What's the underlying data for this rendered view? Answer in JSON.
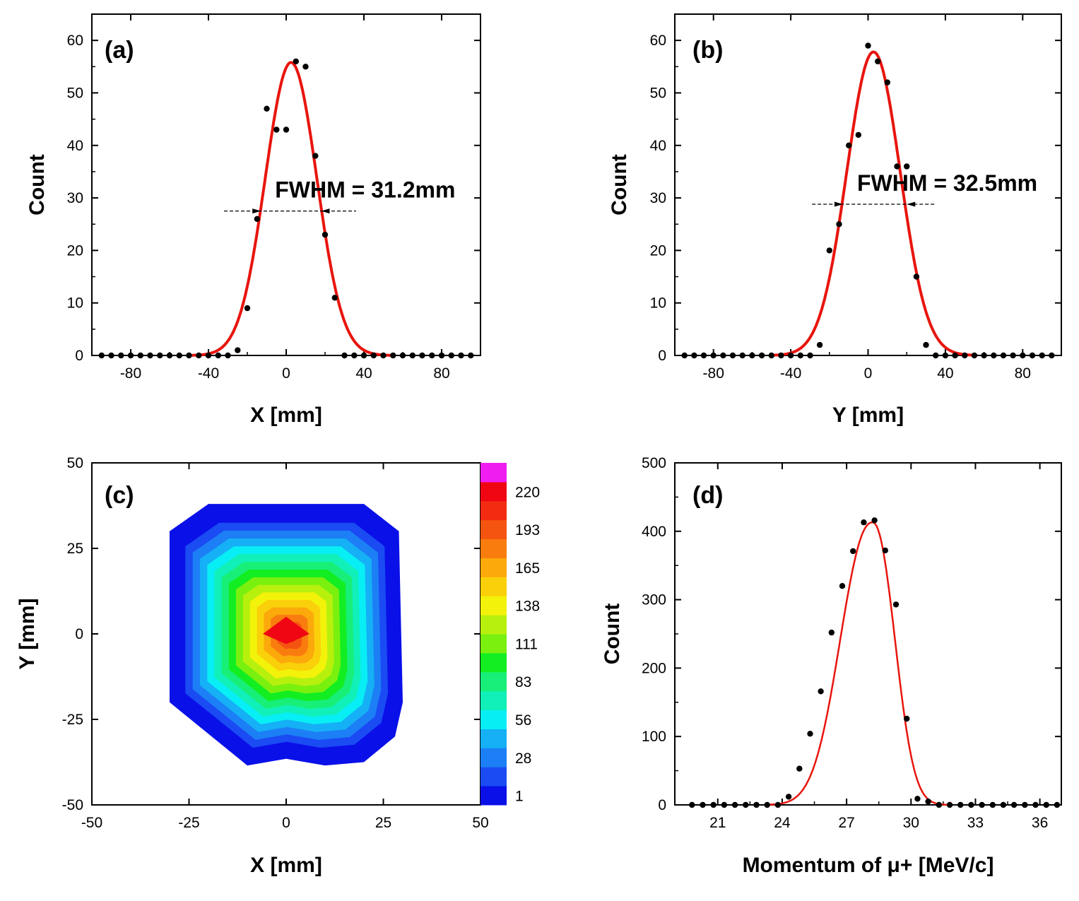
{
  "chart_data": [
    {
      "type": "scatter",
      "panel": "(a)",
      "xlabel": "X [mm]",
      "ylabel": "Count",
      "xlim": [
        -100,
        100
      ],
      "ylim": [
        0,
        65
      ],
      "xticks": [
        -80,
        -40,
        0,
        40,
        80
      ],
      "yticks": [
        0,
        10,
        20,
        30,
        40,
        50,
        60
      ],
      "annotation": "FWHM = 31.2mm",
      "fwhm_arrow": {
        "y": 27.5,
        "x_from": -32,
        "x_to": 36,
        "x_left": -13,
        "x_right": 18
      },
      "fit": {
        "type": "gaussian",
        "amplitude": 55.8,
        "center": 2.5,
        "fwhm": 31.2,
        "color": "#e8150e"
      },
      "series": [
        {
          "name": "data",
          "color": "#000000",
          "x": [
            -95,
            -90,
            -85,
            -80,
            -75,
            -70,
            -65,
            -60,
            -55,
            -50,
            -45,
            -40,
            -35,
            -30,
            -25,
            -20,
            -15,
            -10,
            -5,
            0,
            5,
            10,
            15,
            20,
            25,
            30,
            35,
            40,
            45,
            50,
            55,
            60,
            65,
            70,
            75,
            80,
            85,
            90,
            95
          ],
          "y": [
            0,
            0,
            0,
            0,
            0,
            0,
            0,
            0,
            0,
            0,
            0,
            0,
            0,
            0,
            1,
            9,
            26,
            47,
            43,
            43,
            56,
            55,
            38,
            23,
            11,
            0,
            0,
            0,
            0,
            0,
            0,
            0,
            0,
            0,
            0,
            0,
            0,
            0,
            0
          ]
        }
      ]
    },
    {
      "type": "scatter",
      "panel": "(b)",
      "xlabel": "Y [mm]",
      "ylabel": "Count",
      "xlim": [
        -100,
        100
      ],
      "ylim": [
        0,
        65
      ],
      "xticks": [
        -80,
        -40,
        0,
        40,
        80
      ],
      "yticks": [
        0,
        10,
        20,
        30,
        40,
        50,
        60
      ],
      "annotation": "FWHM = 32.5mm",
      "fwhm_arrow": {
        "y": 28.8,
        "x_from": -29,
        "x_to": 35,
        "x_left": -13,
        "x_right": 20
      },
      "fit": {
        "type": "gaussian",
        "amplitude": 57.8,
        "center": 2.8,
        "fwhm": 32.5,
        "color": "#e8150e"
      },
      "series": [
        {
          "name": "data",
          "color": "#000000",
          "x": [
            -95,
            -90,
            -85,
            -80,
            -75,
            -70,
            -65,
            -60,
            -55,
            -50,
            -45,
            -40,
            -35,
            -30,
            -25,
            -20,
            -15,
            -10,
            -5,
            0,
            5,
            10,
            15,
            20,
            25,
            30,
            35,
            40,
            45,
            50,
            55,
            60,
            65,
            70,
            75,
            80,
            85,
            90,
            95
          ],
          "y": [
            0,
            0,
            0,
            0,
            0,
            0,
            0,
            0,
            0,
            0,
            0,
            0,
            0,
            0,
            2,
            20,
            25,
            40,
            42,
            59,
            56,
            52,
            36,
            36,
            15,
            2,
            0,
            0,
            0,
            0,
            0,
            0,
            0,
            0,
            0,
            0,
            0,
            0,
            0
          ]
        }
      ]
    },
    {
      "type": "heatmap",
      "panel": "(c)",
      "xlabel": "X [mm]",
      "ylabel": "Y [mm]",
      "xlim": [
        -50,
        50
      ],
      "ylim": [
        -50,
        50
      ],
      "xticks": [
        -50,
        -25,
        0,
        25,
        50
      ],
      "yticks": [
        -50,
        -25,
        0,
        25,
        50
      ],
      "colorbar_labels": [
        "1",
        "28",
        "56",
        "83",
        "111",
        "138",
        "165",
        "193",
        "220"
      ],
      "colorbar_levels": [
        "#0a10e8",
        "#1a4bf3",
        "#1c7ff5",
        "#15b0f5",
        "#08eef5",
        "#10f0b8",
        "#18ef78",
        "#12ee22",
        "#7af00f",
        "#b8f00d",
        "#f3f20a",
        "#fad00a",
        "#fba90b",
        "#f97d0e",
        "#f55410",
        "#f32c11",
        "#f00613",
        "#f01df0"
      ],
      "peak": {
        "x": 0,
        "y": 0,
        "value": 220
      },
      "region_x_range": [
        -30,
        30
      ],
      "region_y_range": [
        -38,
        38
      ]
    },
    {
      "type": "scatter",
      "panel": "(d)",
      "xlabel": "Momentum of μ+  [MeV/c]",
      "ylabel": "Count",
      "xlim": [
        19,
        37
      ],
      "ylim": [
        0,
        500
      ],
      "xticks": [
        21,
        24,
        27,
        30,
        33,
        36
      ],
      "yticks": [
        0,
        100,
        200,
        300,
        400,
        500
      ],
      "fit": {
        "type": "gaussian_like",
        "amplitude": 413,
        "center": 28.2,
        "color": "#e8150e"
      },
      "series": [
        {
          "name": "data",
          "color": "#000000",
          "x": [
            19.8,
            20.3,
            20.8,
            21.3,
            21.8,
            22.3,
            22.8,
            23.3,
            23.8,
            24.3,
            24.8,
            25.3,
            25.8,
            26.3,
            26.8,
            27.3,
            27.8,
            28.3,
            28.8,
            29.3,
            29.8,
            30.3,
            30.8,
            31.3,
            31.8,
            32.3,
            32.8,
            33.3,
            33.8,
            34.3,
            34.8,
            35.3,
            35.8,
            36.3,
            36.8
          ],
          "y": [
            0,
            0,
            0,
            0,
            0,
            0,
            0,
            0,
            0,
            12,
            53,
            104,
            166,
            252,
            320,
            371,
            413,
            416,
            372,
            293,
            126,
            9,
            5,
            0,
            0,
            0,
            0,
            0,
            0,
            0,
            0,
            0,
            0,
            0,
            0
          ]
        }
      ]
    }
  ]
}
